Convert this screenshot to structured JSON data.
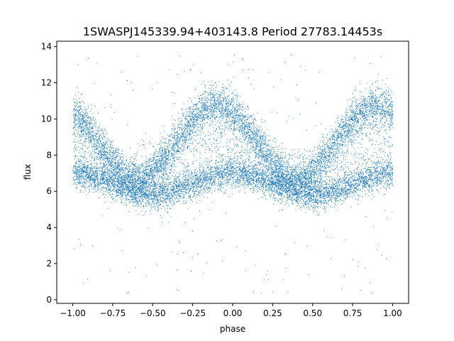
{
  "chart_data": {
    "type": "scatter",
    "title": "1SWASPJ145339.94+403143.8 Period 27783.14453s",
    "xlabel": "phase",
    "ylabel": "flux",
    "xlim": [
      -1.1,
      1.1
    ],
    "ylim": [
      -0.2,
      14.3
    ],
    "x_ticks": [
      -1.0,
      -0.75,
      -0.5,
      -0.25,
      0.0,
      0.25,
      0.5,
      0.75,
      1.0
    ],
    "x_tick_labels": [
      "−1.00",
      "−0.75",
      "−0.50",
      "−0.25",
      "0.00",
      "0.25",
      "0.50",
      "0.75",
      "1.00"
    ],
    "y_ticks": [
      0,
      2,
      4,
      6,
      8,
      10,
      12,
      14
    ],
    "y_tick_labels": [
      "0",
      "2",
      "4",
      "6",
      "8",
      "10",
      "12",
      "14"
    ],
    "grid": false,
    "legend": "none",
    "point_color": "#1f77b4",
    "series": [
      {
        "x_range": [
          -1.0,
          1.0
        ],
        "point_count": 14000,
        "bands": [
          {
            "upper_curve": "peaks near x=-1, x=-0.1 and x=0.9 at ~10.8; troughs near x=-0.55 and x=0.45 at ~6.8",
            "spread": 1.0
          },
          {
            "lower_curve": "peaks near x=-0.95, x=0.0 and x=0.95 at ~7.0; troughs near x=-0.55 and x=0.45 at ~5.8",
            "spread": 0.6
          }
        ],
        "outliers": {
          "y_range": [
            0.3,
            13.6
          ],
          "count": 250
        }
      }
    ]
  }
}
